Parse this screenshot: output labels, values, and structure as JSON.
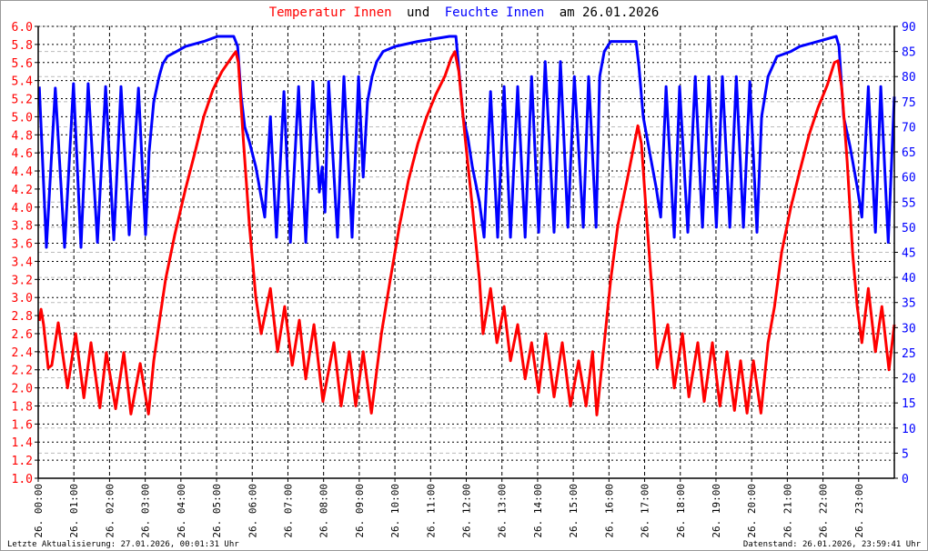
{
  "title": {
    "part1": "Temperatur Innen",
    "part2": "und",
    "part3": "Feuchte Innen",
    "part4": "am 26.01.2026"
  },
  "footer": {
    "left": "Letzte Aktualisierung: 27.01.2026, 00:01:31 Uhr",
    "right": "Datenstand: 26.01.2026, 23:59:41 Uhr"
  },
  "colors": {
    "temperature": "#ff0000",
    "humidity": "#0000ff"
  },
  "chart_data": {
    "type": "line",
    "title": "Temperatur Innen und Feuchte Innen am 26.01.2026",
    "xlabel": "",
    "ylabel_left": "Temperatur",
    "ylabel_right": "Feuchte",
    "xlim_hours": [
      0,
      24
    ],
    "ylim_left": [
      1.0,
      6.0
    ],
    "ylim_right": [
      0,
      90
    ],
    "grid": true,
    "x_tick_labels": [
      "26. 00:00",
      "26. 01:00",
      "26. 02:00",
      "26. 03:00",
      "26. 04:00",
      "26. 05:00",
      "26. 06:00",
      "26. 07:00",
      "26. 08:00",
      "26. 09:00",
      "26. 10:00",
      "26. 11:00",
      "26. 12:00",
      "26. 13:00",
      "26. 14:00",
      "26. 15:00",
      "26. 16:00",
      "26. 17:00",
      "26. 18:00",
      "26. 19:00",
      "26. 20:00",
      "26. 21:00",
      "26. 22:00",
      "26. 23:00"
    ],
    "y_left_ticks": [
      "1.0",
      "1.2",
      "1.4",
      "1.6",
      "1.8",
      "2.0",
      "2.2",
      "2.4",
      "2.6",
      "2.8",
      "3.0",
      "3.2",
      "3.4",
      "3.6",
      "3.8",
      "4.0",
      "4.2",
      "4.4",
      "4.6",
      "4.8",
      "5.0",
      "5.2",
      "5.4",
      "5.6",
      "5.8",
      "6.0"
    ],
    "y_right_ticks": [
      "0",
      "5",
      "10",
      "15",
      "20",
      "25",
      "30",
      "35",
      "40",
      "45",
      "50",
      "55",
      "60",
      "65",
      "70",
      "75",
      "80",
      "85",
      "90"
    ],
    "series": [
      {
        "name": "Temperatur Innen",
        "axis": "left",
        "points": [
          [
            0.03,
            2.74
          ],
          [
            0.08,
            2.87
          ],
          [
            0.15,
            2.7
          ],
          [
            0.28,
            2.22
          ],
          [
            0.38,
            2.25
          ],
          [
            0.56,
            2.72
          ],
          [
            0.82,
            2.0
          ],
          [
            1.05,
            2.6
          ],
          [
            1.28,
            1.89
          ],
          [
            1.48,
            2.5
          ],
          [
            1.73,
            1.78
          ],
          [
            1.91,
            2.39
          ],
          [
            2.17,
            1.77
          ],
          [
            2.4,
            2.39
          ],
          [
            2.6,
            1.71
          ],
          [
            2.86,
            2.27
          ],
          [
            3.09,
            1.71
          ],
          [
            3.24,
            2.3
          ],
          [
            3.42,
            2.8
          ],
          [
            3.57,
            3.2
          ],
          [
            3.83,
            3.7
          ],
          [
            4.13,
            4.2
          ],
          [
            4.39,
            4.6
          ],
          [
            4.64,
            5.0
          ],
          [
            4.9,
            5.3
          ],
          [
            5.15,
            5.5
          ],
          [
            5.41,
            5.65
          ],
          [
            5.54,
            5.72
          ],
          [
            5.61,
            5.6
          ],
          [
            5.74,
            4.8
          ],
          [
            5.92,
            3.8
          ],
          [
            6.1,
            3.0
          ],
          [
            6.25,
            2.6
          ],
          [
            6.51,
            3.1
          ],
          [
            6.71,
            2.4
          ],
          [
            6.91,
            2.9
          ],
          [
            7.12,
            2.25
          ],
          [
            7.32,
            2.75
          ],
          [
            7.5,
            2.1
          ],
          [
            7.73,
            2.7
          ],
          [
            7.98,
            1.85
          ],
          [
            8.29,
            2.5
          ],
          [
            8.49,
            1.8
          ],
          [
            8.72,
            2.4
          ],
          [
            8.9,
            1.8
          ],
          [
            9.11,
            2.4
          ],
          [
            9.34,
            1.72
          ],
          [
            9.62,
            2.6
          ],
          [
            9.87,
            3.2
          ],
          [
            10.13,
            3.8
          ],
          [
            10.38,
            4.3
          ],
          [
            10.64,
            4.7
          ],
          [
            10.89,
            5.0
          ],
          [
            11.15,
            5.25
          ],
          [
            11.4,
            5.45
          ],
          [
            11.58,
            5.65
          ],
          [
            11.68,
            5.72
          ],
          [
            11.79,
            5.5
          ],
          [
            11.96,
            4.8
          ],
          [
            12.17,
            4.0
          ],
          [
            12.37,
            3.2
          ],
          [
            12.47,
            2.6
          ],
          [
            12.68,
            3.1
          ],
          [
            12.86,
            2.5
          ],
          [
            13.06,
            2.9
          ],
          [
            13.24,
            2.3
          ],
          [
            13.44,
            2.7
          ],
          [
            13.65,
            2.1
          ],
          [
            13.83,
            2.5
          ],
          [
            14.03,
            1.95
          ],
          [
            14.23,
            2.6
          ],
          [
            14.46,
            1.9
          ],
          [
            14.69,
            2.5
          ],
          [
            14.92,
            1.8
          ],
          [
            15.15,
            2.3
          ],
          [
            15.36,
            1.8
          ],
          [
            15.54,
            2.4
          ],
          [
            15.66,
            1.7
          ],
          [
            15.87,
            2.5
          ],
          [
            16.05,
            3.2
          ],
          [
            16.25,
            3.8
          ],
          [
            16.51,
            4.3
          ],
          [
            16.71,
            4.7
          ],
          [
            16.81,
            4.9
          ],
          [
            16.91,
            4.7
          ],
          [
            17.07,
            3.8
          ],
          [
            17.22,
            3.0
          ],
          [
            17.35,
            2.22
          ],
          [
            17.65,
            2.7
          ],
          [
            17.83,
            2.0
          ],
          [
            18.06,
            2.6
          ],
          [
            18.24,
            1.9
          ],
          [
            18.49,
            2.5
          ],
          [
            18.67,
            1.85
          ],
          [
            18.9,
            2.5
          ],
          [
            19.11,
            1.8
          ],
          [
            19.31,
            2.4
          ],
          [
            19.52,
            1.75
          ],
          [
            19.69,
            2.3
          ],
          [
            19.87,
            1.72
          ],
          [
            20.05,
            2.3
          ],
          [
            20.26,
            1.72
          ],
          [
            20.46,
            2.5
          ],
          [
            20.64,
            2.9
          ],
          [
            20.84,
            3.5
          ],
          [
            21.1,
            4.0
          ],
          [
            21.35,
            4.4
          ],
          [
            21.61,
            4.8
          ],
          [
            21.86,
            5.1
          ],
          [
            22.12,
            5.35
          ],
          [
            22.32,
            5.6
          ],
          [
            22.42,
            5.62
          ],
          [
            22.53,
            5.3
          ],
          [
            22.68,
            4.5
          ],
          [
            22.83,
            3.5
          ],
          [
            22.96,
            2.9
          ],
          [
            23.09,
            2.5
          ],
          [
            23.27,
            3.1
          ],
          [
            23.47,
            2.4
          ],
          [
            23.65,
            2.9
          ],
          [
            23.85,
            2.2
          ],
          [
            24.0,
            2.7
          ]
        ]
      },
      {
        "name": "Feuchte Innen",
        "axis": "right",
        "points": [
          [
            0.03,
            78
          ],
          [
            0.23,
            46
          ],
          [
            0.48,
            77.7
          ],
          [
            0.74,
            46
          ],
          [
            0.99,
            78.6
          ],
          [
            1.2,
            46
          ],
          [
            1.4,
            78.6
          ],
          [
            1.66,
            47
          ],
          [
            1.89,
            78
          ],
          [
            2.12,
            47.5
          ],
          [
            2.32,
            78
          ],
          [
            2.55,
            48.5
          ],
          [
            2.81,
            77.7
          ],
          [
            3.01,
            48.5
          ],
          [
            3.11,
            65
          ],
          [
            3.24,
            75
          ],
          [
            3.39,
            80
          ],
          [
            3.49,
            82.5
          ],
          [
            3.62,
            84
          ],
          [
            3.88,
            85
          ],
          [
            4.13,
            86
          ],
          [
            4.64,
            87
          ],
          [
            5.03,
            88
          ],
          [
            5.48,
            88
          ],
          [
            5.59,
            86
          ],
          [
            5.69,
            76
          ],
          [
            5.79,
            70
          ],
          [
            5.92,
            67
          ],
          [
            6.1,
            62
          ],
          [
            6.25,
            56
          ],
          [
            6.35,
            52
          ],
          [
            6.51,
            72
          ],
          [
            6.68,
            48
          ],
          [
            6.89,
            77
          ],
          [
            7.07,
            47
          ],
          [
            7.3,
            78
          ],
          [
            7.5,
            47
          ],
          [
            7.7,
            79
          ],
          [
            7.88,
            57
          ],
          [
            7.96,
            62
          ],
          [
            8.04,
            53
          ],
          [
            8.14,
            79
          ],
          [
            8.39,
            48
          ],
          [
            8.57,
            80
          ],
          [
            8.8,
            48
          ],
          [
            8.98,
            80
          ],
          [
            9.11,
            60
          ],
          [
            9.23,
            75
          ],
          [
            9.36,
            80
          ],
          [
            9.49,
            83
          ],
          [
            9.67,
            85
          ],
          [
            10.0,
            86
          ],
          [
            10.64,
            87
          ],
          [
            11.53,
            88
          ],
          [
            11.71,
            88
          ],
          [
            11.81,
            80
          ],
          [
            11.91,
            72
          ],
          [
            12.04,
            68
          ],
          [
            12.17,
            62
          ],
          [
            12.37,
            55
          ],
          [
            12.5,
            48
          ],
          [
            12.68,
            77
          ],
          [
            12.88,
            48
          ],
          [
            13.06,
            78
          ],
          [
            13.24,
            48
          ],
          [
            13.44,
            78
          ],
          [
            13.65,
            48
          ],
          [
            13.83,
            80
          ],
          [
            14.03,
            49
          ],
          [
            14.21,
            83
          ],
          [
            14.46,
            49
          ],
          [
            14.64,
            83
          ],
          [
            14.85,
            50
          ],
          [
            15.03,
            80
          ],
          [
            15.28,
            50
          ],
          [
            15.43,
            80
          ],
          [
            15.64,
            50
          ],
          [
            15.74,
            80
          ],
          [
            15.87,
            85
          ],
          [
            16.05,
            87
          ],
          [
            16.76,
            87
          ],
          [
            16.84,
            82
          ],
          [
            16.96,
            72
          ],
          [
            17.14,
            65
          ],
          [
            17.32,
            58
          ],
          [
            17.45,
            52
          ],
          [
            17.6,
            78
          ],
          [
            17.83,
            48
          ],
          [
            17.98,
            78
          ],
          [
            18.21,
            49
          ],
          [
            18.42,
            80
          ],
          [
            18.62,
            50
          ],
          [
            18.8,
            80
          ],
          [
            19.01,
            50
          ],
          [
            19.18,
            80
          ],
          [
            19.39,
            50
          ],
          [
            19.57,
            80
          ],
          [
            19.77,
            50
          ],
          [
            19.95,
            79
          ],
          [
            20.15,
            49
          ],
          [
            20.28,
            72
          ],
          [
            20.46,
            80
          ],
          [
            20.71,
            84
          ],
          [
            21.1,
            85
          ],
          [
            21.35,
            86
          ],
          [
            21.86,
            87
          ],
          [
            22.37,
            88
          ],
          [
            22.45,
            86
          ],
          [
            22.58,
            72
          ],
          [
            22.76,
            66
          ],
          [
            22.96,
            58
          ],
          [
            23.09,
            52
          ],
          [
            23.27,
            78
          ],
          [
            23.47,
            49
          ],
          [
            23.62,
            78
          ],
          [
            23.83,
            47
          ],
          [
            24.0,
            76
          ]
        ]
      }
    ]
  }
}
